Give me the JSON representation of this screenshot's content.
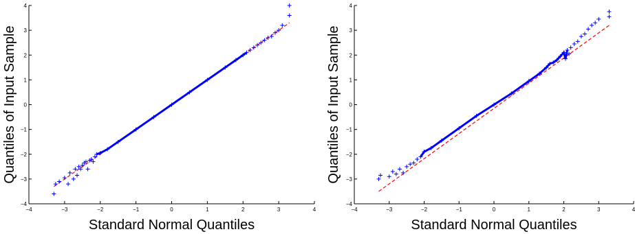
{
  "chart_data": [
    {
      "type": "scatter",
      "title": "",
      "xlabel": "Standard Normal Quantiles",
      "ylabel": "Quantiles of Input Sample",
      "xlim": [
        -4,
        4
      ],
      "ylim": [
        -4,
        4
      ],
      "xticks": [
        "−4",
        "−3",
        "−2",
        "−1",
        "0",
        "1",
        "2",
        "3",
        "4"
      ],
      "yticks": [
        "−4",
        "−3",
        "−2",
        "−1",
        "0",
        "1",
        "2",
        "3",
        "4"
      ],
      "grid": false,
      "marker": "+",
      "point_color": "#0000ff",
      "reference_line_color": "#ff0000",
      "reference_line": {
        "style": "dashed",
        "x": [
          -3.3,
          3.3
        ],
        "y": [
          -3.3,
          3.3
        ]
      },
      "series": [
        {
          "x": [
            -3.3,
            -3.25,
            -3.15,
            -3.0,
            -2.9,
            -2.85,
            -2.75,
            -2.7,
            -2.65,
            -2.6,
            -2.55,
            -2.5,
            -2.45,
            -2.4,
            -2.35,
            -2.3,
            -2.25,
            -2.2,
            -2.15,
            -2.1,
            -2.0,
            -1.8,
            -1.5,
            -1.0,
            -0.5,
            0.0,
            0.5,
            1.0,
            1.5,
            1.8,
            2.0,
            2.1,
            2.2,
            2.3,
            2.4,
            2.5,
            2.6,
            2.7,
            2.8,
            2.9,
            3.0,
            3.1,
            3.3,
            3.3
          ],
          "y": [
            -3.6,
            -3.2,
            -3.1,
            -2.95,
            -3.2,
            -2.75,
            -3.0,
            -2.6,
            -2.85,
            -2.5,
            -2.6,
            -2.45,
            -2.35,
            -2.3,
            -2.6,
            -2.25,
            -2.2,
            -2.3,
            -2.1,
            -2.0,
            -1.95,
            -1.8,
            -1.5,
            -1.0,
            -0.5,
            0.0,
            0.5,
            1.0,
            1.5,
            1.8,
            2.0,
            2.1,
            2.2,
            2.3,
            2.4,
            2.5,
            2.6,
            2.7,
            2.75,
            2.9,
            3.0,
            3.2,
            3.6,
            4.0
          ]
        }
      ]
    },
    {
      "type": "scatter",
      "title": "",
      "xlabel": "Standard Normal Quantiles",
      "ylabel": "Quantiles of Input Sample",
      "xlim": [
        -4,
        4
      ],
      "ylim": [
        -4,
        4
      ],
      "xticks": [
        "−4",
        "−3",
        "−2",
        "−1",
        "0",
        "1",
        "2",
        "3",
        "4"
      ],
      "yticks": [
        "−4",
        "−3",
        "−2",
        "−1",
        "0",
        "1",
        "2",
        "3",
        "4"
      ],
      "grid": false,
      "marker": "+",
      "point_color": "#0000ff",
      "reference_line_color": "#ff0000",
      "reference_line": {
        "style": "dashed",
        "x": [
          -3.3,
          3.3
        ],
        "y": [
          -3.5,
          3.2
        ]
      },
      "series": [
        {
          "x": [
            -3.3,
            -3.25,
            -3.0,
            -2.9,
            -2.8,
            -2.7,
            -2.6,
            -2.5,
            -2.4,
            -2.3,
            -2.2,
            -2.1,
            -2.0,
            -1.8,
            -1.5,
            -1.0,
            -0.5,
            0.0,
            0.5,
            1.0,
            1.3,
            1.5,
            1.6,
            1.7,
            1.8,
            1.9,
            2.0,
            2.05,
            2.1,
            2.15,
            2.2,
            2.3,
            2.4,
            2.5,
            2.6,
            2.7,
            2.8,
            2.9,
            3.0,
            3.3,
            3.3
          ],
          "y": [
            -3.0,
            -2.85,
            -2.9,
            -2.7,
            -2.8,
            -2.6,
            -2.75,
            -2.5,
            -2.4,
            -2.35,
            -2.2,
            -2.1,
            -1.9,
            -1.75,
            -1.45,
            -0.95,
            -0.45,
            0.0,
            0.45,
            0.95,
            1.25,
            1.5,
            1.65,
            1.7,
            1.8,
            1.95,
            2.1,
            1.85,
            2.2,
            2.05,
            2.3,
            2.45,
            2.55,
            2.75,
            2.85,
            3.05,
            3.2,
            3.3,
            3.45,
            3.55,
            3.75
          ]
        }
      ]
    }
  ]
}
